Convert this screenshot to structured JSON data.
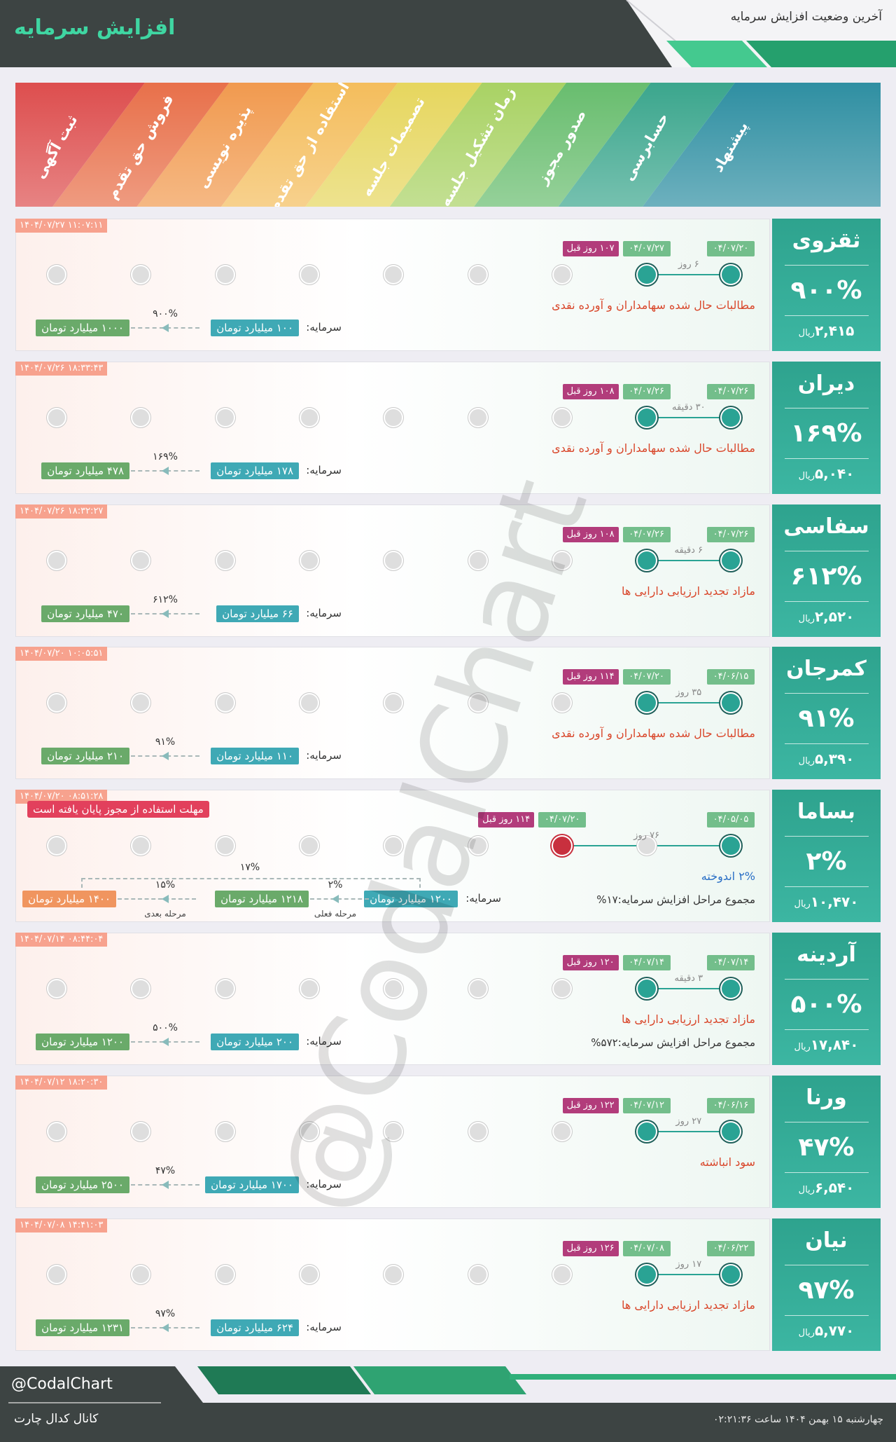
{
  "header": {
    "title": "افزایش سرمایه",
    "subtitle": "آخرین وضعیت افزایش سرمایه"
  },
  "stages": [
    "پیشنهاد",
    "حسابرسی",
    "صدور مجوز",
    "زمان تشکیل جلسه",
    "تصمیمات جلسه",
    "استفاده از حق تقدم",
    "پذیره نویسی",
    "فروش حق تقدم",
    "ثبت آگهی"
  ],
  "labels": {
    "capital": "سرمایه:",
    "currency": "ریال",
    "current_step": "مرحله فعلی",
    "next_step": "مرحله بعدی"
  },
  "rows": [
    {
      "name": "ثقزوی",
      "percent": "۹۰۰%",
      "price": "۲,۴۱۵",
      "timestamp": "۱۴۰۴/۰۷/۲۷ ۱۱:۰۷:۱۱",
      "start_date": "۰۴/۰۷/۲۰",
      "end_date": "۰۴/۰۷/۲۷",
      "days_ago": "۱۰۷ روز قبل",
      "duration": "۶ روز",
      "purpose": "مطالبات حال شده سهامداران و آورده نقدی",
      "current_stage": 1,
      "capital": {
        "current": "۱۰۰ میلیارد تومان",
        "steps": [
          {
            "change": "۹۰۰%",
            "value": "۱۰۰۰ میلیارد تومان"
          }
        ]
      }
    },
    {
      "name": "دیران",
      "percent": "۱۶۹%",
      "price": "۵,۰۴۰",
      "timestamp": "۱۴۰۴/۰۷/۲۶ ۱۸:۳۳:۴۳",
      "start_date": "۰۴/۰۷/۲۶",
      "end_date": "۰۴/۰۷/۲۶",
      "days_ago": "۱۰۸ روز قبل",
      "duration": "۳۰ دقیقه",
      "purpose": "مطالبات حال شده سهامداران و آورده نقدی",
      "current_stage": 1,
      "capital": {
        "current": "۱۷۸ میلیارد تومان",
        "steps": [
          {
            "change": "۱۶۹%",
            "value": "۴۷۸ میلیارد تومان"
          }
        ]
      }
    },
    {
      "name": "سفاسی",
      "percent": "۶۱۲%",
      "price": "۲,۵۲۰",
      "timestamp": "۱۴۰۴/۰۷/۲۶ ۱۸:۳۲:۲۷",
      "start_date": "۰۴/۰۷/۲۶",
      "end_date": "۰۴/۰۷/۲۶",
      "days_ago": "۱۰۸ روز قبل",
      "duration": "۶ دقیقه",
      "purpose": "مازاد تجدید ارزیابی دارایی ها",
      "current_stage": 1,
      "capital": {
        "current": "۶۶ میلیارد تومان",
        "steps": [
          {
            "change": "۶۱۲%",
            "value": "۴۷۰ میلیارد تومان"
          }
        ]
      }
    },
    {
      "name": "کمرجان",
      "percent": "۹۱%",
      "price": "۵,۳۹۰",
      "timestamp": "۱۴۰۴/۰۷/۲۰ ۱۰:۰۵:۵۱",
      "start_date": "۰۴/۰۶/۱۵",
      "end_date": "۰۴/۰۷/۲۰",
      "days_ago": "۱۱۴ روز قبل",
      "duration": "۳۵ روز",
      "purpose": "مطالبات حال شده سهامداران و آورده نقدی",
      "current_stage": 1,
      "capital": {
        "current": "۱۱۰ میلیارد تومان",
        "steps": [
          {
            "change": "۹۱%",
            "value": "۲۱۰ میلیارد تومان"
          }
        ]
      }
    },
    {
      "name": "بساما",
      "percent": "۲%",
      "price": "۱۰,۴۷۰",
      "timestamp": "۱۴۰۴/۰۷/۲۰ ۰۸:۵۱:۲۸",
      "start_date": "۰۴/۰۵/۰۵",
      "end_date": "۰۴/۰۷/۲۰",
      "days_ago": "۱۱۴ روز قبل",
      "duration": "۷۶ روز",
      "purpose": "۲% اندوخته",
      "purpose_color": "#2a6fc6",
      "summary": "مجموع مراحل افزایش سرمایه:۱۷%",
      "notice": "مهلت استفاده از مجوز پایان یافته است",
      "current_stage": 2,
      "expired": true,
      "capital": {
        "current": "۱۲۰۰ میلیارد تومان",
        "steps": [
          {
            "change": "۲%",
            "value": "۱۲۱۸ میلیارد تومان"
          },
          {
            "change": "۱۵%",
            "value": "۱۴۰۰ میلیارد تومان"
          }
        ],
        "total": "۱۷%"
      }
    },
    {
      "name": "آردینه",
      "percent": "۵۰۰%",
      "price": "۱۷,۸۴۰",
      "timestamp": "۱۴۰۴/۰۷/۱۴ ۰۸:۴۴:۰۴",
      "start_date": "۰۴/۰۷/۱۴",
      "end_date": "۰۴/۰۷/۱۴",
      "days_ago": "۱۲۰ روز قبل",
      "duration": "۳ دقیقه",
      "purpose": "مازاد تجدید ارزیابی دارایی ها",
      "summary": "مجموع مراحل افزایش سرمایه:۵۷۲%",
      "current_stage": 1,
      "capital": {
        "current": "۲۰۰ میلیارد تومان",
        "steps": [
          {
            "change": "۵۰۰%",
            "value": "۱۲۰۰ میلیارد تومان"
          }
        ]
      }
    },
    {
      "name": "ورنا",
      "percent": "۴۷%",
      "price": "۶,۵۴۰",
      "timestamp": "۱۴۰۴/۰۷/۱۲ ۱۸:۲۰:۳۰",
      "start_date": "۰۴/۰۶/۱۶",
      "end_date": "۰۴/۰۷/۱۲",
      "days_ago": "۱۲۲ روز قبل",
      "duration": "۲۷ روز",
      "purpose": "سود انباشته",
      "current_stage": 1,
      "capital": {
        "current": "۱۷۰۰ میلیارد تومان",
        "steps": [
          {
            "change": "۴۷%",
            "value": "۲۵۰۰ میلیارد تومان"
          }
        ]
      }
    },
    {
      "name": "نیان",
      "percent": "۹۷%",
      "price": "۵,۷۷۰",
      "timestamp": "۱۴۰۴/۰۷/۰۸ ۱۴:۴۱:۰۳",
      "start_date": "۰۴/۰۶/۲۲",
      "end_date": "۰۴/۰۷/۰۸",
      "days_ago": "۱۲۶ روز قبل",
      "duration": "۱۷ روز",
      "purpose": "مازاد تجدید ارزیابی دارایی ها",
      "current_stage": 1,
      "capital": {
        "current": "۶۲۴ میلیارد تومان",
        "steps": [
          {
            "change": "۹۷%",
            "value": "۱۲۳۱ میلیارد تومان"
          }
        ]
      }
    }
  ],
  "watermark": "@CodalChart",
  "footer": {
    "handle": "@CodalChart",
    "channel": "کانال کدال چارت",
    "date": "چهارشنبه ۱۵ بهمن ۱۴۰۴ ساعت ۰۲:۲۱:۳۶"
  }
}
